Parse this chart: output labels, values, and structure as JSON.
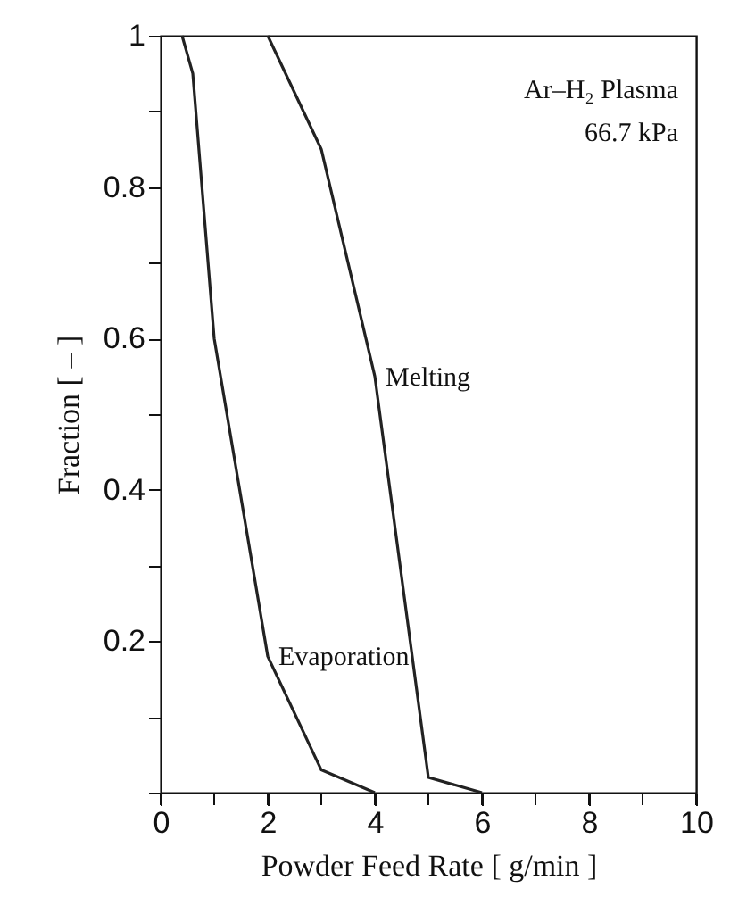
{
  "chart_data": {
    "type": "line",
    "xlabel": "Powder Feed Rate  [ g/min ]",
    "ylabel": "Fraction  [ – ]",
    "annotations": [
      "Ar–H₂ Plasma",
      "66.7 kPa"
    ],
    "series": [
      {
        "name": "Melting",
        "color": "#222222",
        "x": [
          2,
          3,
          3.5,
          4,
          5,
          6
        ],
        "values": [
          1,
          0.85,
          0.7,
          0.55,
          0.02,
          0
        ]
      },
      {
        "name": "Evaporation",
        "color": "#222222",
        "x": [
          0.4,
          0.6,
          1,
          2,
          3,
          4
        ],
        "values": [
          1,
          0.95,
          0.6,
          0.18,
          0.03,
          0
        ]
      }
    ],
    "xlim": [
      0,
      10
    ],
    "ylim": [
      0,
      1
    ],
    "xticks": [
      0,
      {
        "value": 1,
        "label": null
      },
      2,
      {
        "value": 3,
        "label": null
      },
      4,
      {
        "value": 5,
        "label": null
      },
      6,
      {
        "value": 7,
        "label": null
      },
      8,
      {
        "value": 9,
        "label": null
      },
      10
    ],
    "yticks": [
      {
        "value": 0,
        "label": null
      },
      {
        "value": 0.1,
        "label": null
      },
      0.2,
      {
        "value": 0.3,
        "label": null
      },
      0.4,
      {
        "value": 0.5,
        "label": null
      },
      0.6,
      {
        "value": 0.7,
        "label": null
      },
      0.8,
      {
        "value": 0.9,
        "label": null
      },
      1
    ],
    "grid": false,
    "marker": "none",
    "line_style": "solid"
  }
}
